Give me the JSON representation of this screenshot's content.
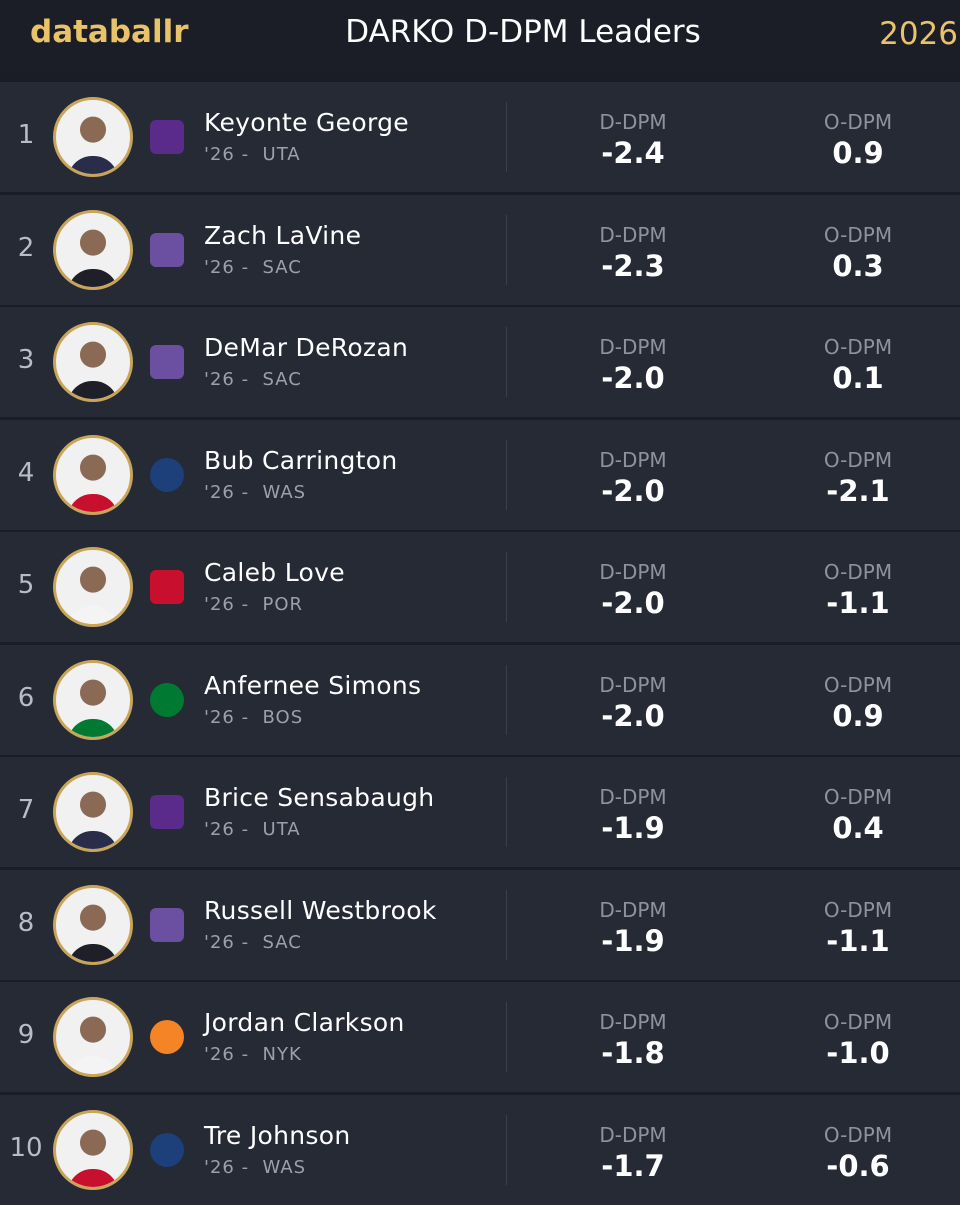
{
  "header": {
    "brand": "databallr",
    "title": "DARKO D-DPM Leaders",
    "year": "2026"
  },
  "columns": {
    "defense": "D-DPM",
    "offense": "O-DPM"
  },
  "rows": [
    {
      "rank": 1,
      "name": "Keyonte George",
      "meta": "'26 -  UTA",
      "team": "UTA",
      "d_dpm": "-2.4",
      "o_dpm": "0.9"
    },
    {
      "rank": 2,
      "name": "Zach LaVine",
      "meta": "'26 -  SAC",
      "team": "SAC",
      "d_dpm": "-2.3",
      "o_dpm": "0.3"
    },
    {
      "rank": 3,
      "name": "DeMar DeRozan",
      "meta": "'26 -  SAC",
      "team": "SAC",
      "d_dpm": "-2.0",
      "o_dpm": "0.1"
    },
    {
      "rank": 4,
      "name": "Bub Carrington",
      "meta": "'26 -  WAS",
      "team": "WAS",
      "d_dpm": "-2.0",
      "o_dpm": "-2.1"
    },
    {
      "rank": 5,
      "name": "Caleb Love",
      "meta": "'26 -  POR",
      "team": "POR",
      "d_dpm": "-2.0",
      "o_dpm": "-1.1"
    },
    {
      "rank": 6,
      "name": "Anfernee Simons",
      "meta": "'26 -  BOS",
      "team": "BOS",
      "d_dpm": "-2.0",
      "o_dpm": "0.9"
    },
    {
      "rank": 7,
      "name": "Brice Sensabaugh",
      "meta": "'26 -  UTA",
      "team": "UTA",
      "d_dpm": "-1.9",
      "o_dpm": "0.4"
    },
    {
      "rank": 8,
      "name": "Russell Westbrook",
      "meta": "'26 -  SAC",
      "team": "SAC",
      "d_dpm": "-1.9",
      "o_dpm": "-1.1"
    },
    {
      "rank": 9,
      "name": "Jordan Clarkson",
      "meta": "'26 -  NYK",
      "team": "NYK",
      "d_dpm": "-1.8",
      "o_dpm": "-1.0"
    },
    {
      "rank": 10,
      "name": "Tre Johnson",
      "meta": "'26 -  WAS",
      "team": "WAS",
      "d_dpm": "-1.7",
      "o_dpm": "-0.6"
    }
  ]
}
